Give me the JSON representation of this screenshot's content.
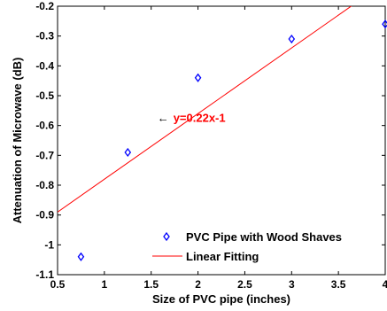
{
  "chart_data": {
    "type": "scatter",
    "xlabel": "Size of PVC pipe (inches)",
    "ylabel": "Attenuation of Microwave (dB)",
    "xlim": [
      0.5,
      4
    ],
    "ylim": [
      -1.1,
      -0.2
    ],
    "xticks": [
      0.5,
      1,
      1.5,
      2,
      2.5,
      3,
      3.5,
      4
    ],
    "xtick_labels": [
      "0.5",
      "1",
      "1.5",
      "2",
      "2.5",
      "3",
      "3.5",
      "4"
    ],
    "yticks": [
      -1.1,
      -1,
      -0.9,
      -0.8,
      -0.7,
      -0.6,
      -0.5,
      -0.4,
      -0.3,
      -0.2
    ],
    "ytick_labels": [
      "-1.1",
      "-1",
      "-0.9",
      "-0.8",
      "-0.7",
      "-0.6",
      "-0.5",
      "-0.4",
      "-0.3",
      "-0.2"
    ],
    "grid": false,
    "legend_position": "bottom-right",
    "series": [
      {
        "name": "PVC Pipe with Wood Shaves",
        "kind": "scatter",
        "marker": "diamond",
        "color": "#0000ff",
        "x": [
          0.75,
          1.25,
          2,
          3,
          4
        ],
        "y": [
          -1.04,
          -0.69,
          -0.44,
          -0.31,
          -0.26
        ]
      },
      {
        "name": "Linear Fitting",
        "kind": "line",
        "color": "#ff0000",
        "slope": 0.22,
        "intercept": -1,
        "x_range": [
          0.5,
          4
        ]
      }
    ],
    "annotations": [
      {
        "text": "y=0.22x-1",
        "x": 1.85,
        "y": -0.575,
        "color": "#ff0000",
        "arrow": "←"
      }
    ]
  }
}
